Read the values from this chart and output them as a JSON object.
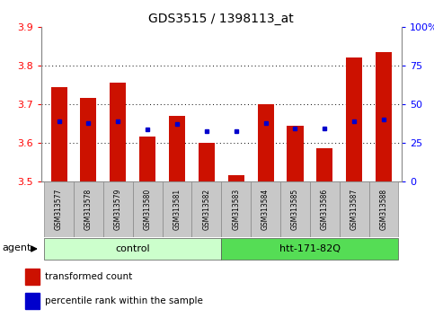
{
  "title": "GDS3515 / 1398113_at",
  "categories": [
    "GSM313577",
    "GSM313578",
    "GSM313579",
    "GSM313580",
    "GSM313581",
    "GSM313582",
    "GSM313583",
    "GSM313584",
    "GSM313585",
    "GSM313586",
    "GSM313587",
    "GSM313588"
  ],
  "bar_values": [
    3.745,
    3.715,
    3.755,
    3.615,
    3.67,
    3.6,
    3.515,
    3.7,
    3.645,
    3.585,
    3.82,
    3.835
  ],
  "percentile_values": [
    3.655,
    3.65,
    3.655,
    3.635,
    3.648,
    3.63,
    3.63,
    3.65,
    3.638,
    3.638,
    3.655,
    3.66
  ],
  "bar_bottom": 3.5,
  "ylim_left": [
    3.5,
    3.9
  ],
  "ylim_right": [
    0,
    100
  ],
  "yticks_left": [
    3.5,
    3.6,
    3.7,
    3.8,
    3.9
  ],
  "yticks_right": [
    0,
    25,
    50,
    75,
    100
  ],
  "ytick_labels_right": [
    "0",
    "25",
    "50",
    "75",
    "100%"
  ],
  "bar_color": "#cc1100",
  "percentile_color": "#0000cc",
  "grid_color": "#000000",
  "bg_color": "#ffffff",
  "tick_area_color": "#c8c8c8",
  "group1_label": "control",
  "group2_label": "htt-171-82Q",
  "group1_indices": [
    0,
    1,
    2,
    3,
    4,
    5
  ],
  "group2_indices": [
    6,
    7,
    8,
    9,
    10,
    11
  ],
  "group1_color": "#ccffcc",
  "group2_color": "#55dd55",
  "agent_label": "agent",
  "legend_bar_label": "transformed count",
  "legend_pct_label": "percentile rank within the sample",
  "bar_width": 0.55
}
